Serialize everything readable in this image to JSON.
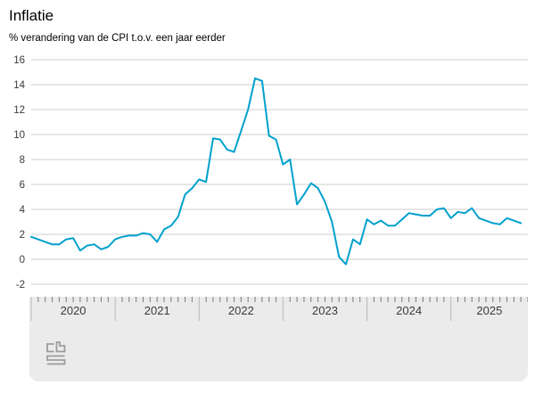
{
  "chart_data": {
    "type": "line",
    "title": "Inflatie",
    "subtitle": "% verandering van de CPI t.o.v. een jaar eerder",
    "series": [
      {
        "name": "Inflatie (CPI, % t.o.v. een jaar eerder)",
        "unit": "%",
        "frequency": "monthly",
        "x_start": "2020-01",
        "x_end": "2025-11",
        "values": [
          1.8,
          1.6,
          1.4,
          1.2,
          1.2,
          1.6,
          1.7,
          0.7,
          1.1,
          1.2,
          0.8,
          1.0,
          1.6,
          1.8,
          1.9,
          1.9,
          2.1,
          2.0,
          1.4,
          2.4,
          2.7,
          3.4,
          5.2,
          5.7,
          6.4,
          6.2,
          9.7,
          9.6,
          8.8,
          8.6,
          10.3,
          12.0,
          14.5,
          14.3,
          9.9,
          9.6,
          7.6,
          8.0,
          4.4,
          5.2,
          6.1,
          5.7,
          4.6,
          3.0,
          0.2,
          -0.4,
          1.6,
          1.2,
          3.2,
          2.8,
          3.1,
          2.7,
          2.7,
          3.2,
          3.7,
          3.6,
          3.5,
          3.5,
          4.0,
          4.1,
          3.3,
          3.8,
          3.7,
          4.1,
          3.3,
          3.1,
          2.9,
          2.8,
          3.3,
          3.1,
          2.9
        ]
      }
    ],
    "ylim": [
      -2,
      16
    ],
    "yticks": [
      16,
      14,
      12,
      10,
      8,
      6,
      4,
      2,
      0,
      -2
    ],
    "x_year_labels": [
      "2020",
      "2021",
      "2022",
      "2023",
      "2024",
      "2025"
    ],
    "x_axis_months_shown": 72,
    "grid": "horizontal-only",
    "legend": "none",
    "line_color": "#00a1cd"
  },
  "axis_panel": {
    "logo": "cbs-logo"
  },
  "colors": {
    "background": "#ffffff",
    "grid": "#cdcdcd",
    "tick_minor": "#7a7a7a",
    "tick_year": "#b8b8b8",
    "axis_text": "#3a3a3a",
    "panel_bg": "#ebebeb",
    "logo": "#9c9c9c"
  }
}
